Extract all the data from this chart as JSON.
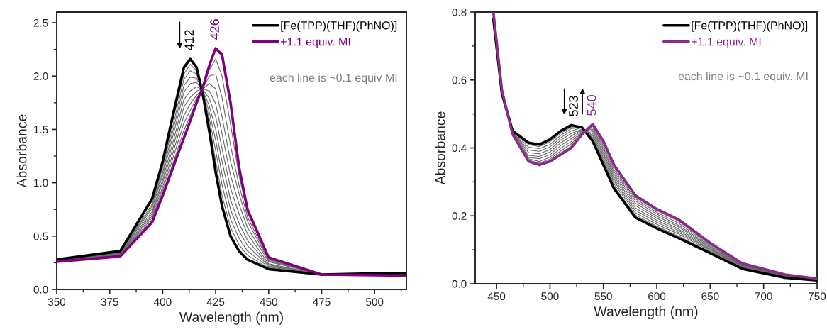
{
  "chart_data": [
    {
      "type": "line",
      "xlabel": "Wavelength (nm)",
      "ylabel": "Absorbance",
      "xlim": [
        350,
        515
      ],
      "ylim": [
        0,
        2.6
      ],
      "xticks": [
        350,
        375,
        400,
        425,
        450,
        475,
        500
      ],
      "yticks": [
        {
          "value": 0,
          "label": "0.0"
        },
        0.5,
        {
          "value": 1,
          "label": "1.0"
        },
        1.5,
        {
          "value": 2,
          "label": "2.0"
        },
        2.5
      ],
      "grid": false,
      "legend": "top right",
      "x": [
        350,
        380,
        395,
        400,
        405,
        410,
        413,
        416,
        419,
        422,
        425,
        428,
        432,
        436,
        440,
        450,
        475,
        515
      ],
      "series": [
        {
          "name": "[Fe(TPP)(THF)(PhNO)]",
          "color": "#000000",
          "values": [
            0.28,
            0.36,
            0.85,
            1.2,
            1.65,
            2.08,
            2.16,
            2.08,
            1.82,
            1.48,
            1.1,
            0.78,
            0.5,
            0.36,
            0.28,
            0.19,
            0.14,
            0.155
          ]
        },
        {
          "color": "#666666",
          "values": [
            0.28,
            0.355,
            0.83,
            1.17,
            1.6,
            2.02,
            2.11,
            2.05,
            1.83,
            1.55,
            1.2,
            0.88,
            0.58,
            0.42,
            0.32,
            0.2,
            0.14,
            0.15
          ]
        },
        {
          "color": "#666666",
          "values": [
            0.28,
            0.35,
            0.8,
            1.14,
            1.55,
            1.97,
            2.05,
            2.02,
            1.84,
            1.6,
            1.3,
            0.98,
            0.66,
            0.48,
            0.36,
            0.21,
            0.14,
            0.15
          ]
        },
        {
          "color": "#666666",
          "values": [
            0.27,
            0.345,
            0.78,
            1.1,
            1.5,
            1.91,
            1.99,
            1.98,
            1.85,
            1.66,
            1.4,
            1.08,
            0.75,
            0.55,
            0.41,
            0.22,
            0.14,
            0.145
          ]
        },
        {
          "color": "#666666",
          "values": [
            0.27,
            0.34,
            0.76,
            1.07,
            1.45,
            1.85,
            1.93,
            1.94,
            1.86,
            1.72,
            1.5,
            1.2,
            0.84,
            0.62,
            0.46,
            0.23,
            0.14,
            0.145
          ]
        },
        {
          "color": "#666666",
          "values": [
            0.27,
            0.335,
            0.73,
            1.03,
            1.39,
            1.78,
            1.86,
            1.9,
            1.87,
            1.79,
            1.62,
            1.32,
            0.95,
            0.71,
            0.52,
            0.24,
            0.14,
            0.14
          ]
        },
        {
          "color": "#666666",
          "values": [
            0.27,
            0.33,
            0.71,
            1.0,
            1.34,
            1.71,
            1.8,
            1.86,
            1.88,
            1.86,
            1.74,
            1.46,
            1.07,
            0.8,
            0.58,
            0.26,
            0.14,
            0.14
          ]
        },
        {
          "color": "#666666",
          "values": [
            0.265,
            0.325,
            0.69,
            0.96,
            1.29,
            1.63,
            1.74,
            1.82,
            1.88,
            1.93,
            1.88,
            1.62,
            1.2,
            0.9,
            0.64,
            0.27,
            0.14,
            0.135
          ]
        },
        {
          "color": "#666666",
          "values": [
            0.265,
            0.32,
            0.67,
            0.93,
            1.24,
            1.56,
            1.68,
            1.79,
            1.89,
            2.0,
            2.02,
            1.8,
            1.35,
            0.98,
            0.68,
            0.28,
            0.14,
            0.135
          ]
        },
        {
          "color": "#666666",
          "values": [
            0.26,
            0.315,
            0.65,
            0.9,
            1.19,
            1.49,
            1.63,
            1.77,
            1.9,
            2.06,
            2.16,
            2.0,
            1.55,
            1.07,
            0.72,
            0.29,
            0.14,
            0.13
          ]
        },
        {
          "name": "+1.1 equiv. MI",
          "color": "#800080",
          "values": [
            0.26,
            0.31,
            0.63,
            0.88,
            1.15,
            1.42,
            1.58,
            1.75,
            1.9,
            2.1,
            2.26,
            2.2,
            1.75,
            1.15,
            0.75,
            0.3,
            0.14,
            0.13
          ]
        }
      ],
      "annotations": [
        {
          "text": "412",
          "x": 413,
          "y": 2.16
        },
        {
          "text": "426",
          "x": 425,
          "y": 2.26
        },
        "each line is ~0.1 equiv MI"
      ]
    },
    {
      "type": "line",
      "xlabel": "Wavelength (nm)",
      "ylabel": "Absorbance",
      "xlim": [
        430,
        750
      ],
      "ylim": [
        0,
        0.8
      ],
      "xticks": [
        450,
        500,
        550,
        600,
        650,
        700,
        750
      ],
      "yticks": [
        {
          "value": 0,
          "label": "0.0"
        },
        0.2,
        0.4,
        0.6,
        0.8
      ],
      "grid": false,
      "legend": "top right",
      "x": [
        447,
        455,
        465,
        480,
        490,
        500,
        510,
        520,
        530,
        540,
        550,
        560,
        580,
        600,
        620,
        650,
        680,
        720,
        750
      ],
      "series": [
        {
          "name": "[Fe(TPP)(THF)(PhNO)]",
          "color": "#000000",
          "values": [
            0.78,
            0.56,
            0.45,
            0.415,
            0.41,
            0.425,
            0.45,
            0.467,
            0.46,
            0.42,
            0.35,
            0.28,
            0.195,
            0.163,
            0.135,
            0.09,
            0.044,
            0.018,
            0.01
          ]
        },
        {
          "color": "#666666",
          "values": [
            0.78,
            0.56,
            0.45,
            0.41,
            0.404,
            0.418,
            0.443,
            0.462,
            0.46,
            0.425,
            0.357,
            0.287,
            0.202,
            0.169,
            0.141,
            0.093,
            0.046,
            0.019,
            0.011
          ]
        },
        {
          "color": "#666666",
          "values": [
            0.785,
            0.56,
            0.45,
            0.402,
            0.398,
            0.41,
            0.437,
            0.457,
            0.46,
            0.43,
            0.364,
            0.294,
            0.209,
            0.175,
            0.147,
            0.096,
            0.048,
            0.02,
            0.011
          ]
        },
        {
          "color": "#666666",
          "values": [
            0.785,
            0.563,
            0.448,
            0.394,
            0.39,
            0.403,
            0.43,
            0.45,
            0.46,
            0.436,
            0.371,
            0.301,
            0.216,
            0.181,
            0.152,
            0.099,
            0.05,
            0.021,
            0.012
          ]
        },
        {
          "color": "#666666",
          "values": [
            0.79,
            0.563,
            0.447,
            0.386,
            0.383,
            0.395,
            0.423,
            0.443,
            0.455,
            0.442,
            0.378,
            0.308,
            0.223,
            0.187,
            0.157,
            0.102,
            0.051,
            0.022,
            0.012
          ]
        },
        {
          "color": "#666666",
          "values": [
            0.79,
            0.565,
            0.446,
            0.378,
            0.375,
            0.388,
            0.415,
            0.435,
            0.455,
            0.448,
            0.385,
            0.315,
            0.23,
            0.193,
            0.162,
            0.105,
            0.052,
            0.023,
            0.013
          ]
        },
        {
          "color": "#666666",
          "values": [
            0.79,
            0.566,
            0.444,
            0.372,
            0.368,
            0.38,
            0.407,
            0.427,
            0.452,
            0.454,
            0.392,
            0.322,
            0.237,
            0.199,
            0.168,
            0.108,
            0.054,
            0.024,
            0.013
          ]
        },
        {
          "color": "#666666",
          "values": [
            0.795,
            0.567,
            0.443,
            0.368,
            0.36,
            0.373,
            0.399,
            0.419,
            0.45,
            0.459,
            0.399,
            0.329,
            0.244,
            0.205,
            0.173,
            0.111,
            0.055,
            0.025,
            0.014
          ]
        },
        {
          "color": "#666666",
          "values": [
            0.795,
            0.568,
            0.442,
            0.364,
            0.355,
            0.367,
            0.391,
            0.412,
            0.447,
            0.464,
            0.406,
            0.336,
            0.25,
            0.21,
            0.179,
            0.114,
            0.057,
            0.026,
            0.014
          ]
        },
        {
          "color": "#666666",
          "values": [
            0.8,
            0.569,
            0.441,
            0.362,
            0.352,
            0.363,
            0.385,
            0.406,
            0.443,
            0.467,
            0.413,
            0.343,
            0.255,
            0.215,
            0.185,
            0.117,
            0.058,
            0.026,
            0.015
          ]
        },
        {
          "name": "+1.1 equiv. MI",
          "color": "#8b2a8b",
          "values": [
            0.8,
            0.57,
            0.44,
            0.36,
            0.35,
            0.36,
            0.38,
            0.4,
            0.44,
            0.47,
            0.42,
            0.35,
            0.26,
            0.22,
            0.19,
            0.12,
            0.06,
            0.027,
            0.015
          ]
        }
      ],
      "annotations": [
        {
          "text": "523",
          "x": 523,
          "y": 0.468
        },
        {
          "text": "540",
          "x": 540,
          "y": 0.47
        },
        "each line is ~0.1 equiv. MI"
      ]
    }
  ]
}
